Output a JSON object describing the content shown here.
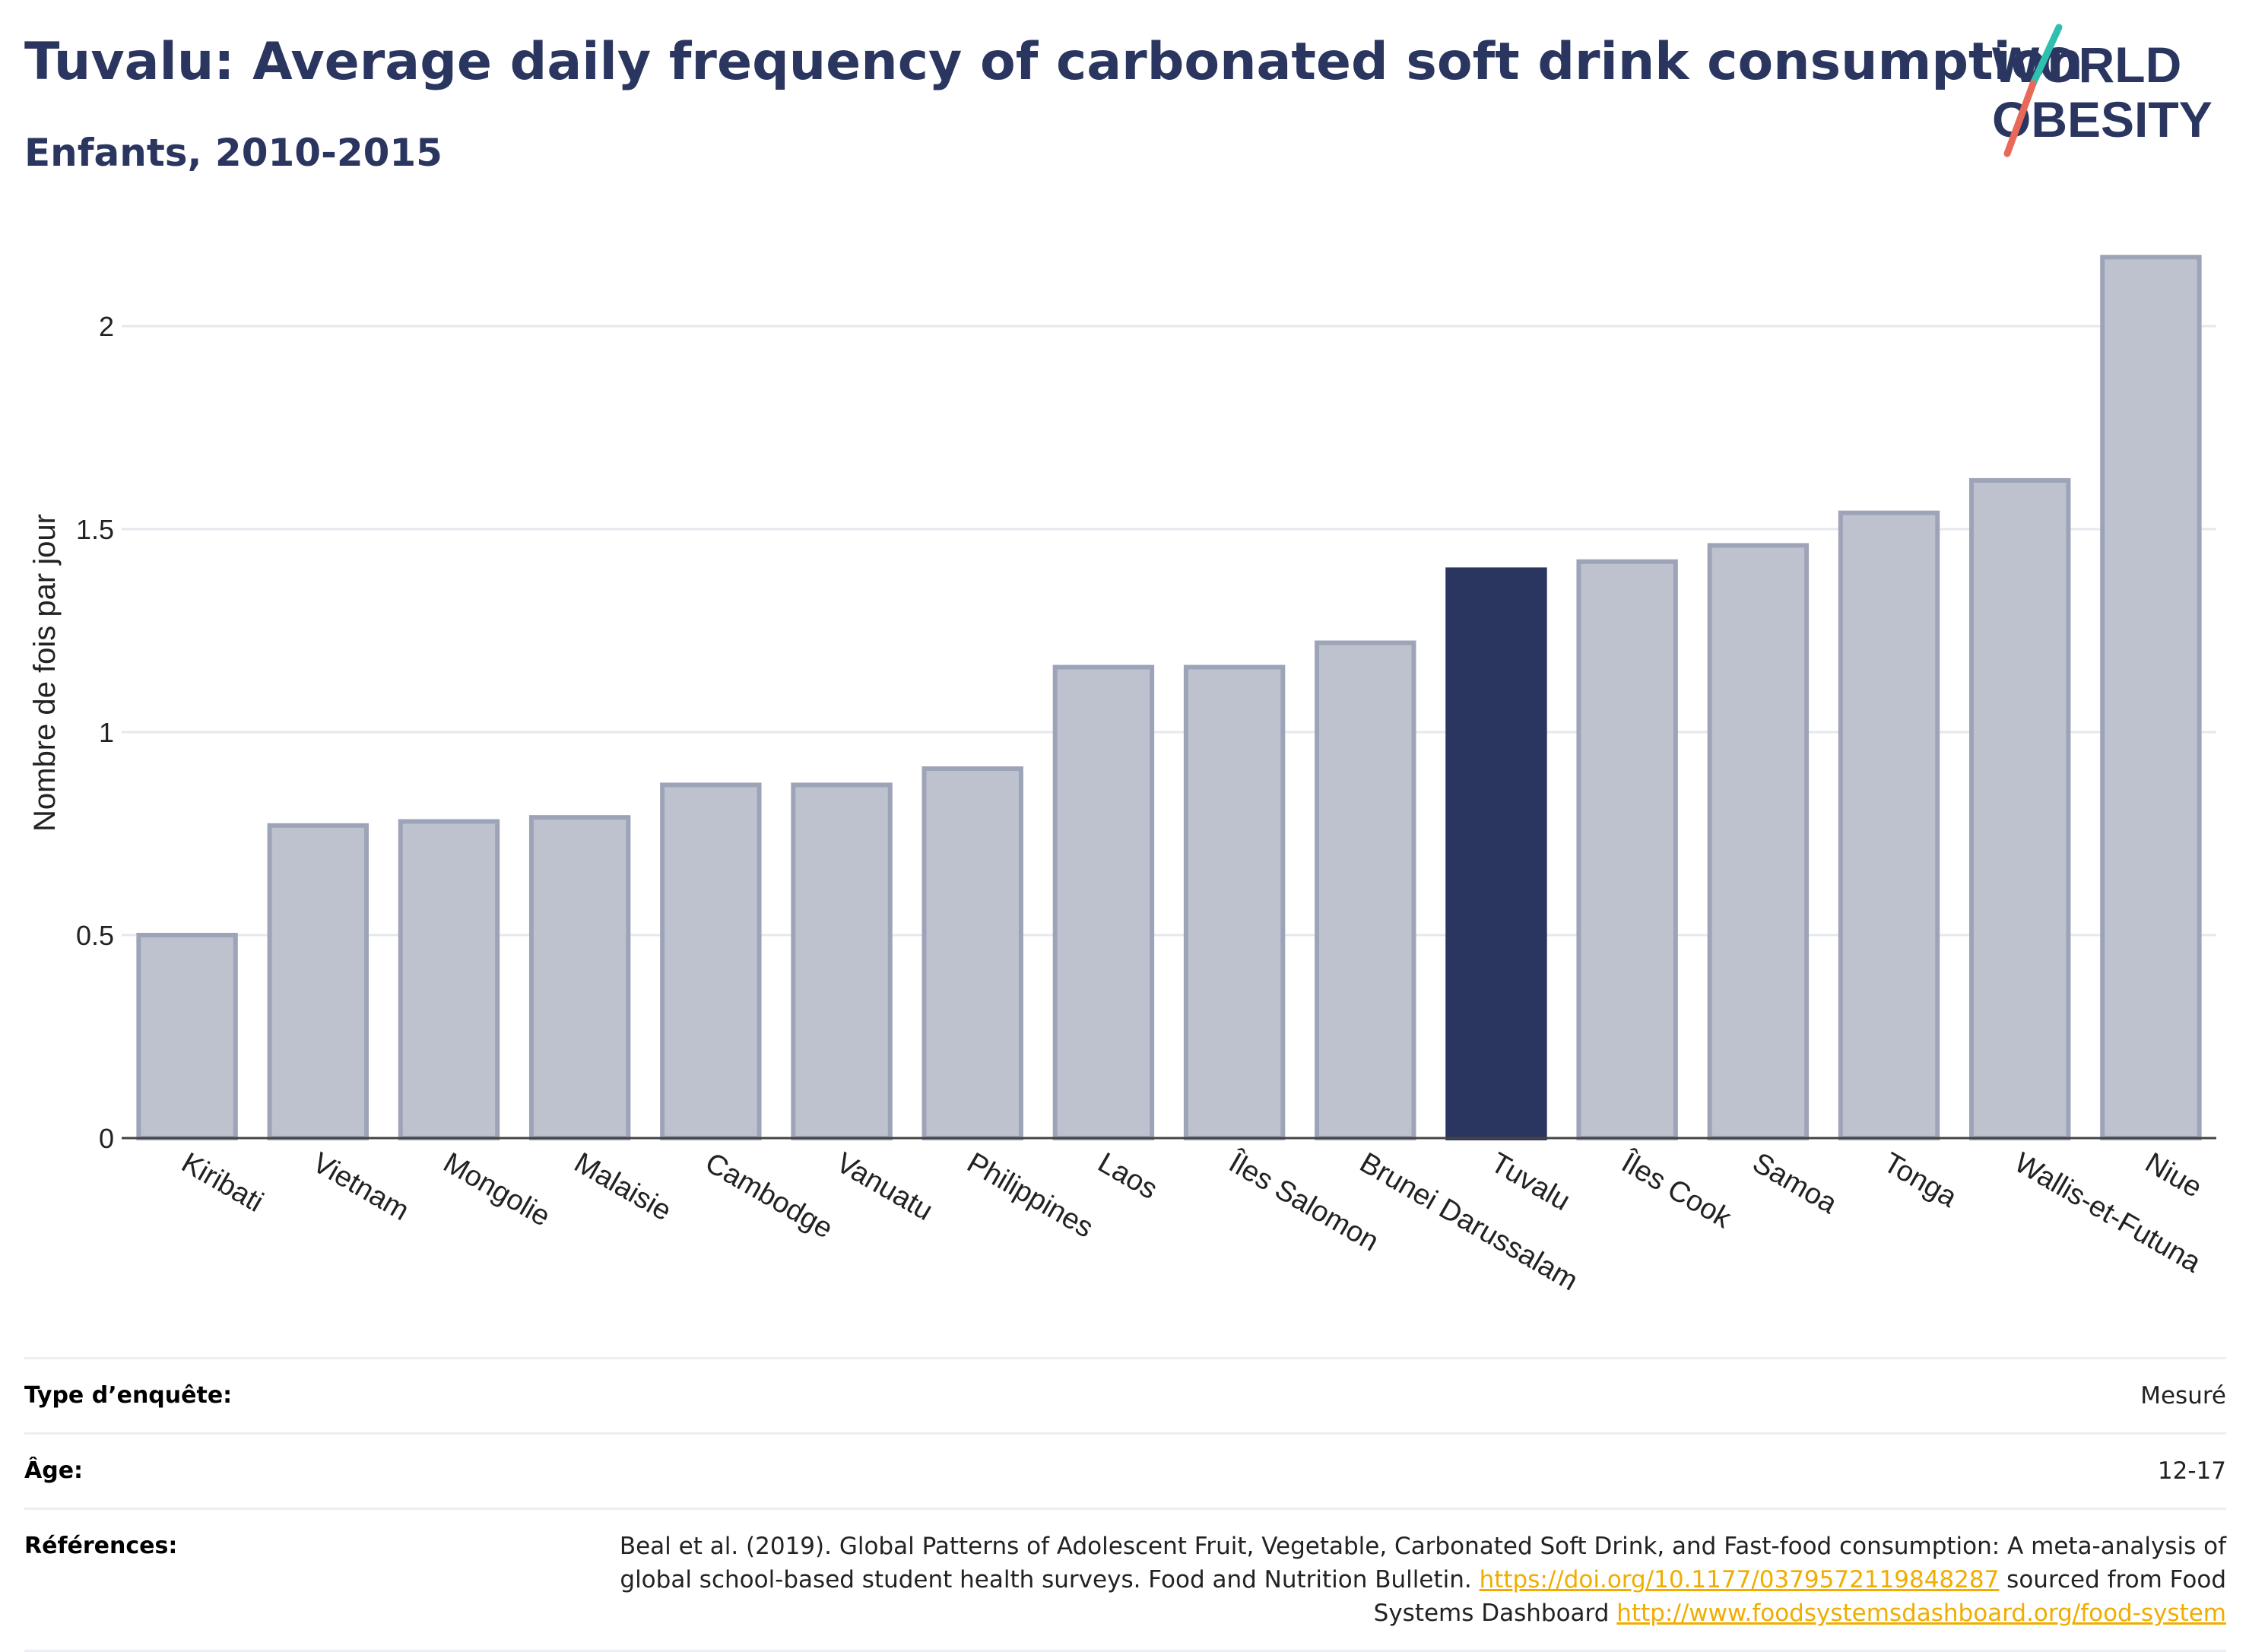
{
  "header": {
    "title": "Tuvalu: Average daily frequency of carbonated soft drink consumption",
    "subtitle": "Enfants, 2010-2015"
  },
  "logo": {
    "line1": "WORLD",
    "line2": "OBESITY"
  },
  "colors": {
    "highlight": "#2a365f",
    "bar_fill": "#bec2cf",
    "bar_stroke": "#9ea4b8",
    "grid": "#e6e8ee",
    "logo_teal": "#2fbfb0",
    "logo_coral": "#e8685a",
    "link": "#f0ad00"
  },
  "chart_data": {
    "type": "bar",
    "categories": [
      "Kiribati",
      "Vietnam",
      "Mongolie",
      "Malaisie",
      "Cambodge",
      "Vanuatu",
      "Philippines",
      "Laos",
      "Îles Salomon",
      "Brunei Darussalam",
      "Tuvalu",
      "Îles Cook",
      "Samoa",
      "Tonga",
      "Wallis-et-Futuna",
      "Niue"
    ],
    "values": [
      0.5,
      0.77,
      0.78,
      0.79,
      0.87,
      0.87,
      0.91,
      1.16,
      1.16,
      1.22,
      1.4,
      1.42,
      1.46,
      1.54,
      1.62,
      2.17
    ],
    "highlight": "Tuvalu",
    "ylabel": "Nombre de fois par jour",
    "xlabel": "",
    "ylim": [
      0,
      2.2
    ],
    "yticks": [
      0,
      0.5,
      1,
      1.5,
      2
    ],
    "ytick_labels": [
      "0",
      "0.5",
      "1",
      "1.5",
      "2"
    ],
    "grid": true
  },
  "meta": {
    "survey_type_label": "Type d’enquête:",
    "survey_type_value": "Mesuré",
    "age_label": "Âge:",
    "age_value": "12-17",
    "references_label": "Références:",
    "references_text_1": "Beal et al. (2019). Global Patterns of Adolescent Fruit, Vegetable, Carbonated Soft Drink, and Fast-food consumption: A meta-analysis of global school-based student health surveys. Food and Nutrition Bulletin. ",
    "references_link_1": "https://doi.org/10.1177/0379572119848287",
    "references_text_2": " sourced from Food Systems Dashboard ",
    "references_link_2": "http://www.foodsystemsdashboard.org/food-system"
  }
}
